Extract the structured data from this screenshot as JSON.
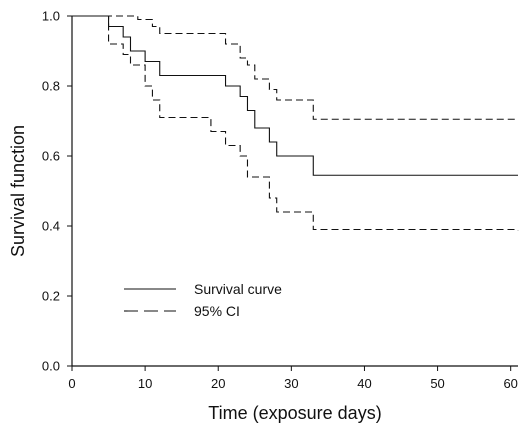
{
  "chart_data": {
    "type": "line",
    "title": "",
    "xlabel": "Time (exposure days)",
    "ylabel": "Survival function",
    "xlim": [
      0,
      61
    ],
    "ylim": [
      0,
      1
    ],
    "x_ticks": [
      0,
      10,
      20,
      30,
      40,
      50,
      60
    ],
    "x_tick_labels": [
      "0",
      "10",
      "20",
      "30",
      "40",
      "50",
      "60"
    ],
    "y_ticks": [
      0,
      0.2,
      0.4,
      0.6,
      0.8,
      1
    ],
    "y_tick_labels": [
      "0.0",
      "0.2",
      "0.4",
      "0.6",
      "0.8",
      "1.0"
    ],
    "grid": false,
    "legend_position": "lower-left",
    "series": [
      {
        "name": "Survival curve",
        "style": "solid",
        "color": "#111111",
        "steps": [
          [
            0,
            1.0
          ],
          [
            5,
            0.97
          ],
          [
            7,
            0.94
          ],
          [
            8,
            0.9
          ],
          [
            10,
            0.87
          ],
          [
            12,
            0.83
          ],
          [
            21,
            0.8
          ],
          [
            23,
            0.77
          ],
          [
            24,
            0.73
          ],
          [
            25,
            0.68
          ],
          [
            27,
            0.64
          ],
          [
            28,
            0.6
          ],
          [
            33,
            0.545
          ],
          [
            61,
            0.545
          ]
        ]
      },
      {
        "name": "95% CI",
        "style": "dashed",
        "color": "#111111",
        "steps": [
          [
            0,
            1.0
          ],
          [
            8,
            1.0
          ],
          [
            9,
            0.99
          ],
          [
            11,
            0.97
          ],
          [
            12,
            0.95
          ],
          [
            21,
            0.92
          ],
          [
            23,
            0.88
          ],
          [
            24,
            0.86
          ],
          [
            25,
            0.82
          ],
          [
            27,
            0.79
          ],
          [
            28,
            0.76
          ],
          [
            33,
            0.705
          ],
          [
            61,
            0.705
          ]
        ]
      },
      {
        "name": "",
        "style": "dashed",
        "color": "#111111",
        "steps": [
          [
            0,
            1.0
          ],
          [
            5,
            0.92
          ],
          [
            7,
            0.89
          ],
          [
            8,
            0.86
          ],
          [
            10,
            0.8
          ],
          [
            11,
            0.76
          ],
          [
            12,
            0.71
          ],
          [
            19,
            0.67
          ],
          [
            21,
            0.63
          ],
          [
            23,
            0.6
          ],
          [
            24,
            0.54
          ],
          [
            27,
            0.48
          ],
          [
            28,
            0.44
          ],
          [
            33,
            0.39
          ],
          [
            61,
            0.388
          ]
        ]
      }
    ],
    "legend": [
      {
        "label": "Survival curve",
        "style": "solid"
      },
      {
        "label": "95% CI",
        "style": "dashed"
      }
    ]
  }
}
